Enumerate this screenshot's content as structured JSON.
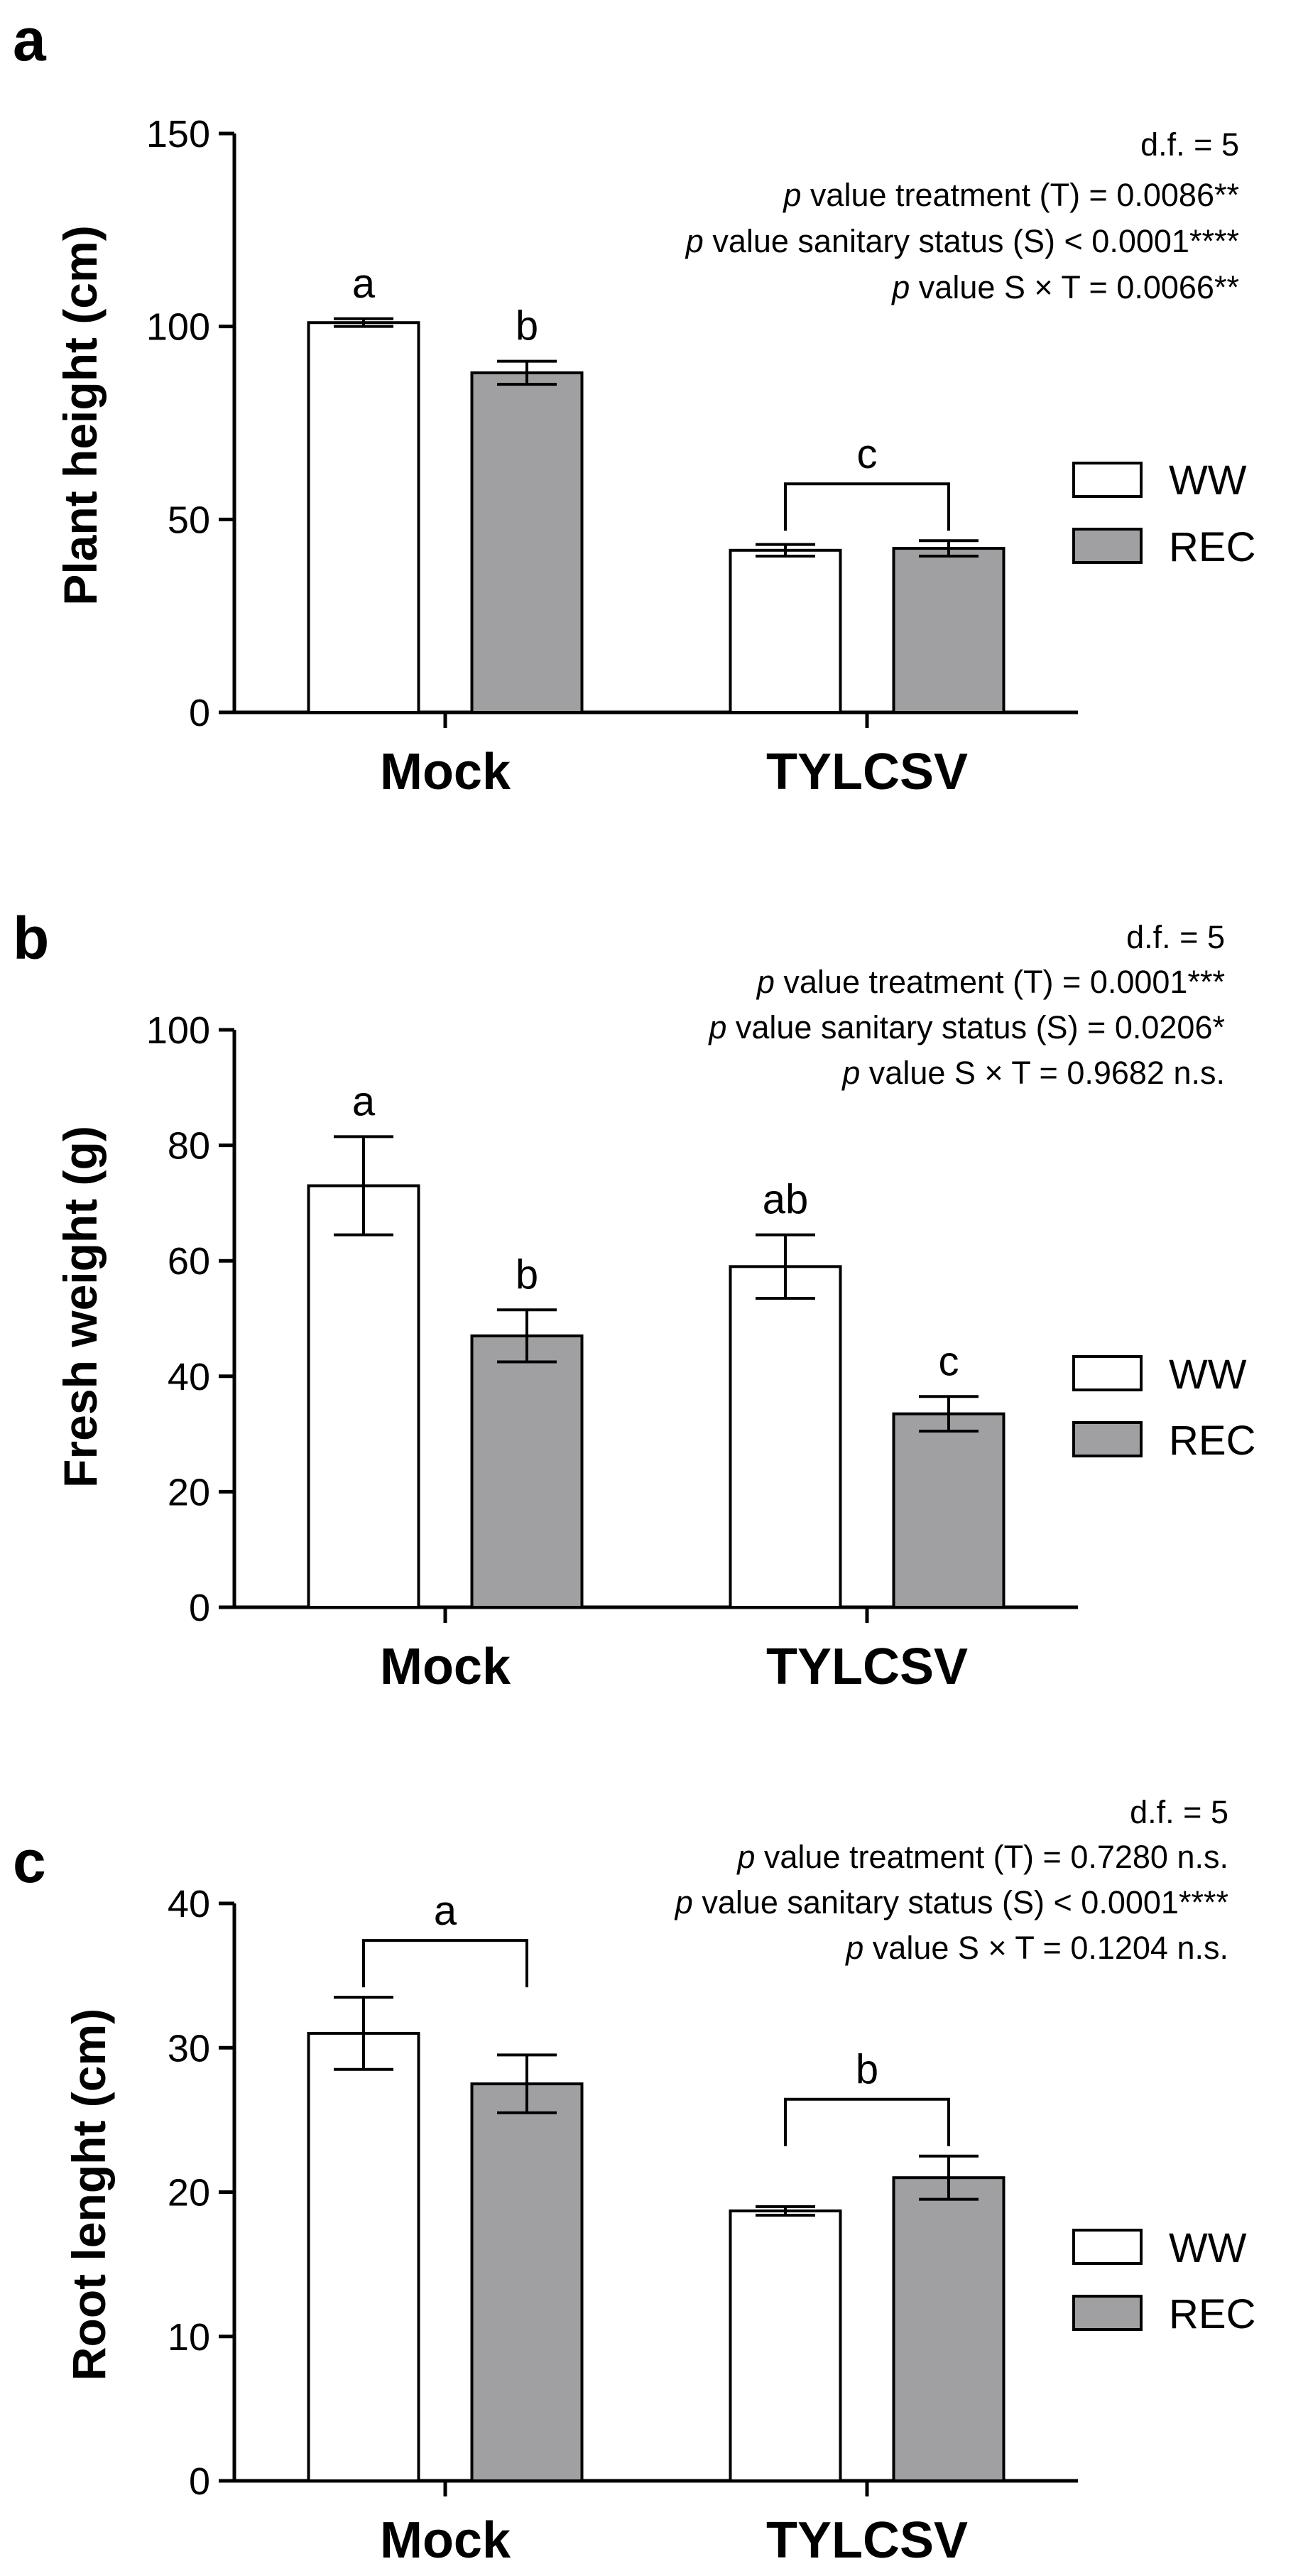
{
  "figure": {
    "panels": [
      {
        "letter": "a",
        "stats": {
          "df": "d.f. = 5",
          "treatment": {
            "p": "p",
            "rest": " value treatment (T) = 0.0086**"
          },
          "sanitary": {
            "p": "p",
            "rest": " value sanitary status (S) < 0.0001****"
          },
          "interaction": {
            "p": "p",
            "rest": " value S × T = 0.0066**"
          }
        }
      },
      {
        "letter": "b",
        "stats": {
          "df": "d.f. = 5",
          "treatment": {
            "p": "p",
            "rest": " value treatment (T) = 0.0001***"
          },
          "sanitary": {
            "p": "p",
            "rest": " value sanitary status (S) = 0.0206*"
          },
          "interaction": {
            "p": "p",
            "rest": " value S × T = 0.9682 n.s."
          }
        }
      },
      {
        "letter": "c",
        "stats": {
          "df": "d.f. = 5",
          "treatment": {
            "p": "p",
            "rest": " value treatment (T) = 0.7280 n.s."
          },
          "sanitary": {
            "p": "p",
            "rest": " value sanitary status (S) < 0.0001****"
          },
          "interaction": {
            "p": "p",
            "rest": " value S × T = 0.1204 n.s."
          }
        }
      }
    ]
  },
  "colors": {
    "ww_fill": "#ffffff",
    "rec_fill": "#a0a0a3",
    "stroke": "#000000"
  },
  "chart_data": [
    {
      "type": "bar",
      "panel": "a",
      "categories": [
        "Mock",
        "TYLCSV"
      ],
      "ylabel": "Plant height (cm)",
      "xlabel": "",
      "ylim": [
        0,
        150
      ],
      "yticks": [
        0,
        50,
        100,
        150
      ],
      "legend_position": "right",
      "series": [
        {
          "name": "WW",
          "values": [
            101,
            42
          ],
          "errors": [
            1,
            1.5
          ]
        },
        {
          "name": "REC",
          "values": [
            88,
            42.5
          ],
          "errors": [
            3,
            2
          ]
        }
      ],
      "letters": [
        {
          "text": "a",
          "category": 0,
          "series": 0,
          "bracket": false
        },
        {
          "text": "b",
          "category": 0,
          "series": 1,
          "bracket": false
        },
        {
          "text": "c",
          "category": 1,
          "bracket": true
        }
      ]
    },
    {
      "type": "bar",
      "panel": "b",
      "categories": [
        "Mock",
        "TYLCSV"
      ],
      "ylabel": "Fresh weight (g)",
      "xlabel": "",
      "ylim": [
        0,
        100
      ],
      "yticks": [
        0,
        20,
        40,
        60,
        80,
        100
      ],
      "legend_position": "right",
      "series": [
        {
          "name": "WW",
          "values": [
            73,
            59
          ],
          "errors": [
            8.5,
            5.5
          ]
        },
        {
          "name": "REC",
          "values": [
            47,
            33.5
          ],
          "errors": [
            4.5,
            3
          ]
        }
      ],
      "letters": [
        {
          "text": "a",
          "category": 0,
          "series": 0,
          "bracket": false
        },
        {
          "text": "b",
          "category": 0,
          "series": 1,
          "bracket": false
        },
        {
          "text": "ab",
          "category": 1,
          "series": 0,
          "bracket": false
        },
        {
          "text": "c",
          "category": 1,
          "series": 1,
          "bracket": false
        }
      ]
    },
    {
      "type": "bar",
      "panel": "c",
      "categories": [
        "Mock",
        "TYLCSV"
      ],
      "ylabel": "Root lenght (cm)",
      "xlabel": "",
      "ylim": [
        0,
        40
      ],
      "yticks": [
        0,
        10,
        20,
        30,
        40
      ],
      "legend_position": "right",
      "series": [
        {
          "name": "WW",
          "values": [
            31,
            18.7
          ],
          "errors": [
            2.5,
            0.3
          ]
        },
        {
          "name": "REC",
          "values": [
            27.5,
            21
          ],
          "errors": [
            2,
            1.5
          ]
        }
      ],
      "letters": [
        {
          "text": "a",
          "category": 0,
          "bracket": true
        },
        {
          "text": "b",
          "category": 1,
          "bracket": true
        }
      ]
    }
  ]
}
